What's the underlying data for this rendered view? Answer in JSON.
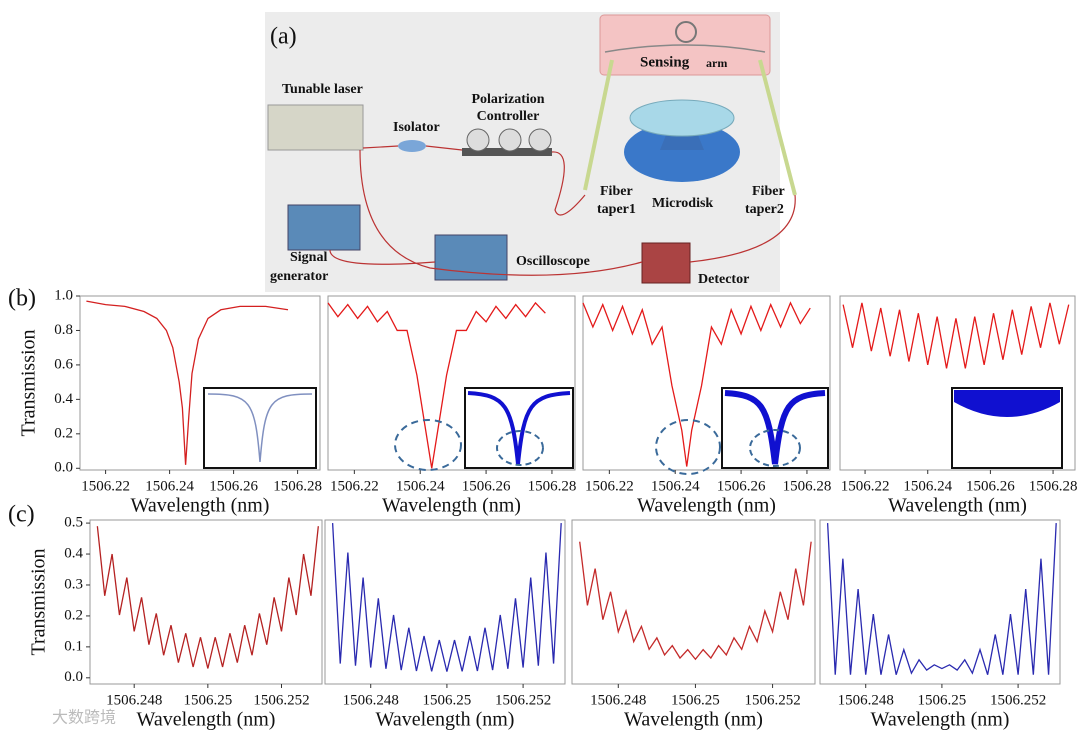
{
  "diagram": {
    "panel_label": "(a)",
    "labels": [
      "Sensing",
      "arm",
      "Tunable laser",
      "Isolator",
      "Polarization",
      "Controller",
      "Fiber",
      "taper1",
      "Microdisk",
      "Fiber",
      "taper2",
      "Signal",
      "generator",
      "Oscilloscope",
      "Detector"
    ]
  },
  "row_labels": [
    "(b)",
    "(c)"
  ],
  "watermark": "大数跨境",
  "chart_data": [
    {
      "type": "line",
      "xlabel": "Wavelength (nm)",
      "ylabel": "Transmission",
      "xlim": [
        1506.212,
        1506.287
      ],
      "ylim": [
        -0.01,
        1.0
      ],
      "xticks": [
        1506.22,
        1506.24,
        1506.26,
        1506.28
      ],
      "yticks": [
        {
          "value": 0,
          "label": "0.0"
        },
        0.2,
        0.4,
        0.6,
        0.8,
        {
          "value": 1,
          "label": "1.0"
        }
      ],
      "x": [
        1506.214,
        1506.22,
        1506.226,
        1506.232,
        1506.236,
        1506.239,
        1506.241,
        1506.243,
        1506.244,
        1506.245,
        1506.246,
        1506.247,
        1506.249,
        1506.252,
        1506.256,
        1506.262,
        1506.27,
        1506.277
      ],
      "series": [
        {
          "color": "#d42020",
          "values": [
            0.97,
            0.95,
            0.94,
            0.91,
            0.87,
            0.8,
            0.7,
            0.5,
            0.35,
            0.02,
            0.3,
            0.55,
            0.75,
            0.87,
            0.92,
            0.94,
            0.94,
            0.92
          ]
        }
      ]
    },
    {
      "type": "line",
      "xlabel": "Wavelength (nm)",
      "xlim": [
        1506.212,
        1506.287
      ],
      "ylim": [
        -0.01,
        1.0
      ],
      "xticks": [
        1506.22,
        1506.24,
        1506.26,
        1506.28
      ],
      "x": [
        1506.212,
        1506.215,
        1506.218,
        1506.221,
        1506.224,
        1506.227,
        1506.23,
        1506.233,
        1506.236,
        1506.239,
        1506.242,
        1506.2435,
        1506.245,
        1506.248,
        1506.251,
        1506.254,
        1506.257,
        1506.26,
        1506.263,
        1506.266,
        1506.269,
        1506.272,
        1506.275,
        1506.278
      ],
      "series": [
        {
          "color": "#e41a1a",
          "values": [
            0.96,
            0.88,
            0.95,
            0.87,
            0.94,
            0.85,
            0.91,
            0.8,
            0.8,
            0.54,
            0.18,
            0.0,
            0.18,
            0.54,
            0.8,
            0.8,
            0.91,
            0.85,
            0.94,
            0.87,
            0.95,
            0.88,
            0.96,
            0.9
          ]
        }
      ]
    },
    {
      "type": "line",
      "xlabel": "Wavelength (nm)",
      "xlim": [
        1506.212,
        1506.287
      ],
      "ylim": [
        -0.01,
        1.0
      ],
      "xticks": [
        1506.22,
        1506.24,
        1506.26,
        1506.28
      ],
      "x": [
        1506.212,
        1506.215,
        1506.218,
        1506.221,
        1506.224,
        1506.227,
        1506.23,
        1506.233,
        1506.236,
        1506.239,
        1506.242,
        1506.2435,
        1506.245,
        1506.248,
        1506.251,
        1506.254,
        1506.257,
        1506.26,
        1506.263,
        1506.266,
        1506.269,
        1506.272,
        1506.275,
        1506.278,
        1506.281
      ],
      "series": [
        {
          "color": "#e41a1a",
          "values": [
            0.96,
            0.82,
            0.95,
            0.8,
            0.94,
            0.78,
            0.92,
            0.72,
            0.82,
            0.48,
            0.22,
            0.01,
            0.22,
            0.48,
            0.82,
            0.72,
            0.92,
            0.78,
            0.94,
            0.8,
            0.95,
            0.82,
            0.96,
            0.84,
            0.93
          ]
        }
      ]
    },
    {
      "type": "line",
      "xlabel": "Wavelength (nm)",
      "xlim": [
        1506.212,
        1506.287
      ],
      "ylim": [
        -0.01,
        1.0
      ],
      "xticks": [
        1506.22,
        1506.24,
        1506.26,
        1506.28
      ],
      "x": [
        1506.213,
        1506.216,
        1506.219,
        1506.222,
        1506.225,
        1506.228,
        1506.231,
        1506.234,
        1506.237,
        1506.24,
        1506.243,
        1506.246,
        1506.249,
        1506.252,
        1506.255,
        1506.258,
        1506.261,
        1506.264,
        1506.267,
        1506.27,
        1506.273,
        1506.276,
        1506.279,
        1506.282,
        1506.285
      ],
      "series": [
        {
          "color": "#e41a1a",
          "values": [
            0.95,
            0.7,
            0.96,
            0.68,
            0.93,
            0.65,
            0.92,
            0.62,
            0.9,
            0.6,
            0.88,
            0.58,
            0.87,
            0.58,
            0.88,
            0.6,
            0.9,
            0.63,
            0.92,
            0.66,
            0.94,
            0.7,
            0.96,
            0.72,
            0.95
          ]
        }
      ]
    },
    {
      "type": "line",
      "xlabel": "Wavelength (nm)",
      "ylabel": "Transmission",
      "xlim": [
        1506.2468,
        1506.2531
      ],
      "ylim": [
        -0.02,
        0.51
      ],
      "xticks": [
        1506.248,
        1506.25,
        1506.252
      ],
      "yticks": [
        {
          "value": 0,
          "label": "0.0"
        },
        0.1,
        0.2,
        0.3,
        0.4,
        0.5
      ],
      "x": [
        1506.247,
        1506.2472,
        1506.2474,
        1506.2476,
        1506.2478,
        1506.248,
        1506.2482,
        1506.2484,
        1506.2486,
        1506.2488,
        1506.249,
        1506.2492,
        1506.2494,
        1506.2496,
        1506.2498,
        1506.25,
        1506.2502,
        1506.2504,
        1506.2506,
        1506.2508,
        1506.251,
        1506.2512,
        1506.2514,
        1506.2516,
        1506.2518,
        1506.252,
        1506.2522,
        1506.2524,
        1506.2526,
        1506.2528,
        1506.253
      ],
      "series": [
        {
          "color": "#b52222",
          "values": [
            0.49,
            0.265,
            0.4,
            0.203,
            0.324,
            0.15,
            0.26,
            0.107,
            0.208,
            0.073,
            0.17,
            0.049,
            0.144,
            0.035,
            0.131,
            0.03,
            0.131,
            0.035,
            0.144,
            0.049,
            0.17,
            0.073,
            0.208,
            0.107,
            0.26,
            0.15,
            0.324,
            0.203,
            0.4,
            0.265,
            0.49
          ]
        }
      ]
    },
    {
      "type": "line",
      "xlabel": "Wavelength (nm)",
      "xlim": [
        1506.2468,
        1506.2531
      ],
      "ylim": [
        -0.02,
        0.51
      ],
      "xticks": [
        1506.248,
        1506.25,
        1506.252
      ],
      "x": [
        1506.247,
        1506.2472,
        1506.2474,
        1506.2476,
        1506.2478,
        1506.248,
        1506.2482,
        1506.2484,
        1506.2486,
        1506.2488,
        1506.249,
        1506.2492,
        1506.2494,
        1506.2496,
        1506.2498,
        1506.25,
        1506.2502,
        1506.2504,
        1506.2506,
        1506.2508,
        1506.251,
        1506.2512,
        1506.2514,
        1506.2516,
        1506.2518,
        1506.252,
        1506.2522,
        1506.2524,
        1506.2526,
        1506.2528,
        1506.253
      ],
      "series": [
        {
          "color": "#2a2ab0",
          "values": [
            0.5,
            0.046,
            0.405,
            0.039,
            0.324,
            0.033,
            0.257,
            0.029,
            0.203,
            0.025,
            0.162,
            0.022,
            0.135,
            0.021,
            0.122,
            0.02,
            0.122,
            0.021,
            0.135,
            0.022,
            0.162,
            0.025,
            0.203,
            0.029,
            0.257,
            0.033,
            0.324,
            0.039,
            0.405,
            0.046,
            0.5
          ]
        }
      ]
    },
    {
      "type": "line",
      "xlabel": "Wavelength (nm)",
      "xlim": [
        1506.2468,
        1506.2531
      ],
      "ylim": [
        -0.02,
        0.51
      ],
      "xticks": [
        1506.248,
        1506.25,
        1506.252
      ],
      "x": [
        1506.247,
        1506.2472,
        1506.2474,
        1506.2476,
        1506.2478,
        1506.248,
        1506.2482,
        1506.2484,
        1506.2486,
        1506.2488,
        1506.249,
        1506.2492,
        1506.2494,
        1506.2496,
        1506.2498,
        1506.25,
        1506.2502,
        1506.2504,
        1506.2506,
        1506.2508,
        1506.251,
        1506.2512,
        1506.2514,
        1506.2516,
        1506.2518,
        1506.252,
        1506.2522,
        1506.2524,
        1506.2526,
        1506.2528,
        1506.253
      ],
      "series": [
        {
          "color": "#c42a2a",
          "values": [
            0.44,
            0.234,
            0.353,
            0.188,
            0.278,
            0.149,
            0.216,
            0.117,
            0.166,
            0.092,
            0.129,
            0.074,
            0.104,
            0.064,
            0.091,
            0.06,
            0.091,
            0.064,
            0.104,
            0.074,
            0.129,
            0.092,
            0.166,
            0.117,
            0.216,
            0.149,
            0.278,
            0.188,
            0.353,
            0.234,
            0.44
          ]
        }
      ]
    },
    {
      "type": "line",
      "xlabel": "Wavelength (nm)",
      "xlim": [
        1506.2468,
        1506.2531
      ],
      "ylim": [
        -0.02,
        0.51
      ],
      "xticks": [
        1506.248,
        1506.25,
        1506.252
      ],
      "x": [
        1506.247,
        1506.2472,
        1506.2474,
        1506.2476,
        1506.2478,
        1506.248,
        1506.2482,
        1506.2484,
        1506.2486,
        1506.2488,
        1506.249,
        1506.2492,
        1506.2494,
        1506.2496,
        1506.2498,
        1506.25,
        1506.2502,
        1506.2504,
        1506.2506,
        1506.2508,
        1506.251,
        1506.2512,
        1506.2514,
        1506.2516,
        1506.2518,
        1506.252,
        1506.2522,
        1506.2524,
        1506.2526,
        1506.2528,
        1506.253
      ],
      "series": [
        {
          "color": "#2a2ab0",
          "values": [
            0.5,
            0.01,
            0.385,
            0.01,
            0.287,
            0.01,
            0.206,
            0.01,
            0.14,
            0.01,
            0.091,
            0.015,
            0.058,
            0.025,
            0.042,
            0.03,
            0.042,
            0.025,
            0.058,
            0.015,
            0.091,
            0.01,
            0.14,
            0.01,
            0.206,
            0.01,
            0.287,
            0.01,
            0.385,
            0.01,
            0.5
          ]
        }
      ]
    }
  ]
}
